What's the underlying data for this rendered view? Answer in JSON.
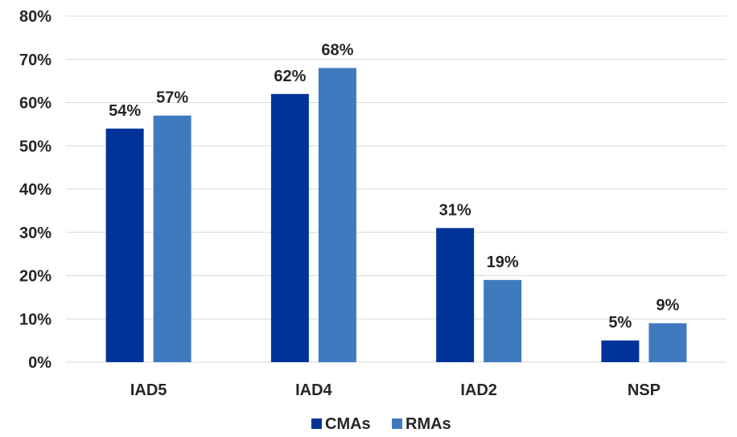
{
  "chart_data": {
    "type": "bar",
    "title": "",
    "xlabel": "",
    "ylabel": "",
    "categories": [
      "IAD5",
      "IAD4",
      "IAD2",
      "NSP"
    ],
    "series": [
      {
        "name": "CMAs",
        "values": [
          54,
          62,
          31,
          5
        ],
        "labels": [
          "54%",
          "62%",
          "31%",
          "5%"
        ],
        "color": "#003399"
      },
      {
        "name": "RMAs",
        "values": [
          57,
          68,
          19,
          9
        ],
        "labels": [
          "57%",
          "68%",
          "19%",
          "9%"
        ],
        "color": "#3f7abe"
      }
    ],
    "ylim": [
      0,
      80
    ],
    "yticks": [
      0,
      10,
      20,
      30,
      40,
      50,
      60,
      70,
      80
    ],
    "ytick_labels": [
      "0%",
      "10%",
      "20%",
      "30%",
      "40%",
      "50%",
      "60%",
      "70%",
      "80%"
    ],
    "grid": true,
    "legend_position": "bottom"
  }
}
